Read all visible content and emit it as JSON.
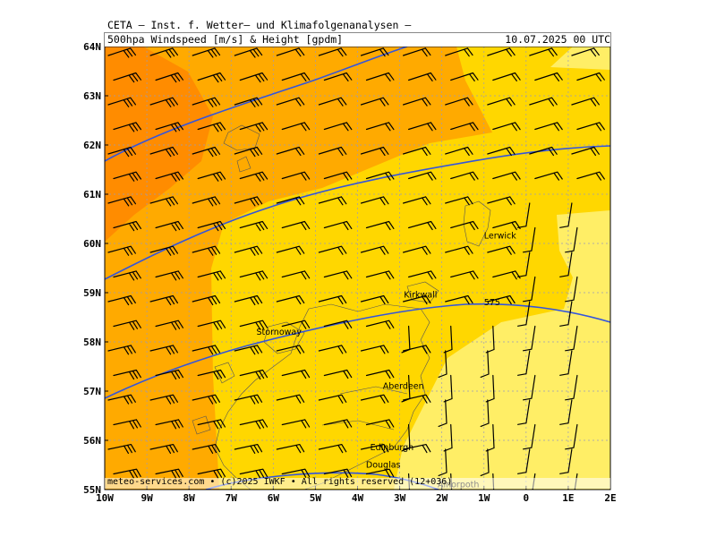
{
  "header": {
    "line1": "CETA — Inst. f. Wetter— und Klimafolgenanalysen —",
    "line2": "500hpa Windspeed [m/s] & Height [gpdm]",
    "datetime": "10.07.2025 00 UTC"
  },
  "footer": {
    "text": "meteo-services.com • (c)2025 IWKF • All rights reserved (12+036)"
  },
  "axes": {
    "lat_labels": [
      "64N",
      "63N",
      "62N",
      "61N",
      "60N",
      "59N",
      "58N",
      "57N",
      "56N",
      "55N"
    ],
    "lon_labels": [
      "10W",
      "9W",
      "8W",
      "7W",
      "6W",
      "5W",
      "4W",
      "3W",
      "2W",
      "1W",
      "0",
      "1E",
      "2E"
    ],
    "lat_range": [
      55,
      64
    ],
    "lon_range": [
      -10,
      2
    ]
  },
  "cities": [
    {
      "name": "Lerwick",
      "lon": -1.0,
      "lat": 60.1
    },
    {
      "name": "Kirkwall",
      "lon": -2.9,
      "lat": 58.9
    },
    {
      "name": "Stornoway",
      "lon": -6.4,
      "lat": 58.15
    },
    {
      "name": "Aberdeen",
      "lon": -3.4,
      "lat": 57.05
    },
    {
      "name": "Edinburgh",
      "lon": -3.7,
      "lat": 55.8
    },
    {
      "name": "Douglas",
      "lon": -3.8,
      "lat": 55.45
    },
    {
      "name": "Alnorpoth",
      "lon": -2.1,
      "lat": 55.05
    }
  ],
  "contour_labels": [
    {
      "text": "575",
      "lon": -1.0,
      "lat": 58.75
    }
  ],
  "colors": {
    "speed_strong": "#ff8c00",
    "speed_high": "#ffaa00",
    "speed_mid": "#ffd700",
    "speed_low": "#ffee66",
    "height_contour": "#3355dd",
    "grid": "#9999bb"
  }
}
